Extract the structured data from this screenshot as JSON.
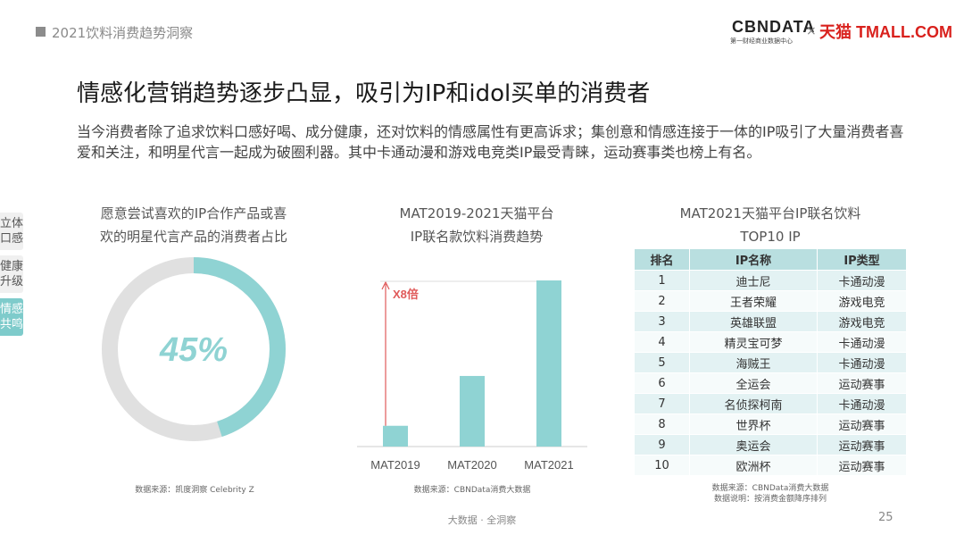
{
  "header": {
    "title": "2021饮料消费趋势洞察",
    "logo_cbn": "CBNDATA",
    "logo_cbn_sub": "第一财经商业数据中心",
    "logo_x": "×",
    "logo_tmall": "天猫 TMALL.COM"
  },
  "main_title": "情感化营销趋势逐步凸显，吸引为IP和idol买单的消费者",
  "description": "当今消费者除了追求饮料口感好喝、成分健康，还对饮料的情感属性有更高诉求；集创意和情感连接于一体的IP吸引了大量消费者喜爱和关注，和明星代言一起成为破圈利器。其中卡通动漫和游戏电竞类IP最受青睐，运动赛事类也榜上有名。",
  "side_tabs": [
    {
      "label": "立体口感",
      "active": false
    },
    {
      "label": "健康升级",
      "active": false
    },
    {
      "label": "情感共鸣",
      "active": true
    }
  ],
  "panels": {
    "donut": {
      "title_line1": "愿意尝试喜欢的IP合作产品或喜",
      "title_line2": "欢的明星代言产品的消费者占比",
      "source": "数据来源：凯度洞察 Celebrity Z"
    },
    "bars": {
      "title_line1": "MAT2019-2021天猫平台",
      "title_line2": "IP联名款饮料消费趋势",
      "source": "数据来源：CBNData消费大数据"
    },
    "table": {
      "title_line1": "MAT2021天猫平台IP联名饮料",
      "title_line2": "TOP10 IP",
      "source_line1": "数据来源：CBNData消费大数据",
      "source_line2": "数据说明：按消费金额降序排列"
    }
  },
  "chart_data": [
    {
      "type": "pie",
      "variant": "donut",
      "values": [
        45,
        55
      ],
      "center_label": "45%",
      "colors": [
        "#8fd3d3",
        "#e0e0e0"
      ]
    },
    {
      "type": "bar",
      "categories": [
        "MAT2019",
        "MAT2020",
        "MAT2021"
      ],
      "values": [
        1,
        3.4,
        8
      ],
      "annotation": "X8倍",
      "color": "#8fd3d3",
      "annotation_color": "#e05a5a"
    },
    {
      "type": "table",
      "columns": [
        "排名",
        "IP名称",
        "IP类型"
      ],
      "rows": [
        [
          "1",
          "迪士尼",
          "卡通动漫"
        ],
        [
          "2",
          "王者荣耀",
          "游戏电竞"
        ],
        [
          "3",
          "英雄联盟",
          "游戏电竞"
        ],
        [
          "4",
          "精灵宝可梦",
          "卡通动漫"
        ],
        [
          "5",
          "海贼王",
          "卡通动漫"
        ],
        [
          "6",
          "全运会",
          "运动赛事"
        ],
        [
          "7",
          "名侦探柯南",
          "卡通动漫"
        ],
        [
          "8",
          "世界杯",
          "运动赛事"
        ],
        [
          "9",
          "奥运会",
          "运动赛事"
        ],
        [
          "10",
          "欧洲杯",
          "运动赛事"
        ]
      ]
    }
  ],
  "footer": "大数据 · 全洞察",
  "page_number": "25"
}
